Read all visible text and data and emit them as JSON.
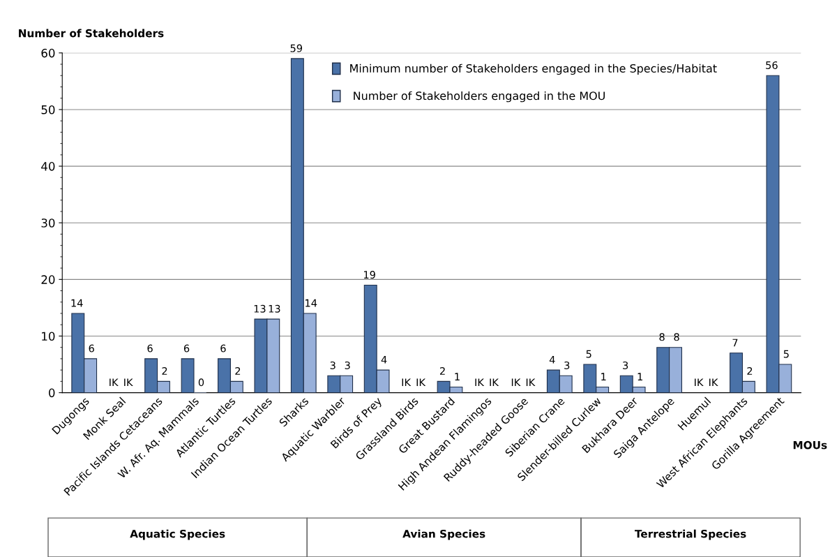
{
  "chart_data": {
    "type": "bar",
    "ylabel": "Number of Stakeholders",
    "xlabel": "MOUs",
    "categories": [
      "Dugongs",
      "Monk Seal",
      "Pacific Islands Cetaceans",
      "W. Afr. Aq. Mammals",
      "Atlantic Turtles",
      "Indian Ocean Turtles",
      "Sharks",
      "Aquatic Warbler",
      "Birds of Prey",
      "Grassland Birds",
      "Great Bustard",
      "High Andean Flamingos",
      "Ruddy-headed Goose",
      "Siberian Crane",
      "Slender-billed Curlew",
      "Bukhara Deer",
      "Saiga Antelope",
      "Huemul",
      "West African Elephants",
      "Gorilla Agreement"
    ],
    "series": [
      {
        "name": "Minimum number of Stakeholders engaged in the Species/Habitat",
        "color": "#4a72a8",
        "values": [
          14,
          null,
          6,
          6,
          6,
          13,
          59,
          3,
          19,
          null,
          2,
          null,
          null,
          4,
          5,
          3,
          8,
          null,
          7,
          56
        ],
        "value_labels": [
          "14",
          "IK",
          "6",
          "6",
          "6",
          "13",
          "59",
          "3",
          "19",
          "IK",
          "2",
          "IK",
          "IK",
          "4",
          "5",
          "3",
          "8",
          "IK",
          "7",
          "56"
        ]
      },
      {
        "name": " Number of Stakeholders engaged in the MOU",
        "color": "#98b0da",
        "values": [
          6,
          null,
          2,
          0,
          2,
          13,
          14,
          3,
          4,
          null,
          1,
          null,
          null,
          3,
          1,
          1,
          8,
          null,
          2,
          5
        ],
        "value_labels": [
          "6",
          "IK",
          "2",
          "0",
          "2",
          "13",
          "14",
          "3",
          "4",
          "IK",
          "1",
          "IK",
          "IK",
          "3",
          "1",
          "1",
          "8",
          "IK",
          "2",
          "5"
        ]
      }
    ],
    "ylim": [
      0,
      60
    ],
    "yticks": [
      0,
      10,
      20,
      30,
      40,
      50,
      60
    ],
    "grid": "y",
    "legend": "top right",
    "annotations": [
      "Aquatic Species",
      "Avian Species",
      "Terrestrial Species"
    ]
  }
}
